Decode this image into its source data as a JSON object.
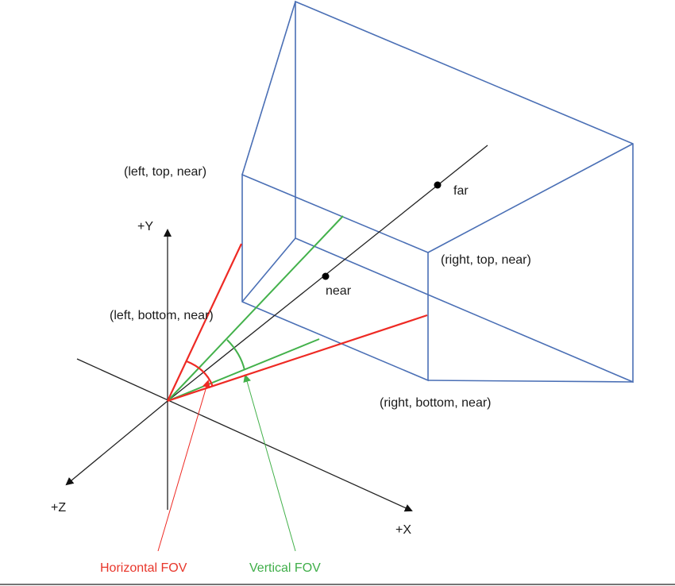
{
  "labels": {
    "left_top_near": "(left, top, near)",
    "right_top_near": "(right, top, near)",
    "left_bottom_near": "(left, bottom, near)",
    "right_bottom_near": "(right, bottom, near)",
    "far": "far",
    "near": "near",
    "axis_y": "+Y",
    "axis_z": "+Z",
    "axis_x": "+X",
    "horizontal_fov": "Horizontal FOV",
    "vertical_fov": "Vertical FOV"
  },
  "colors": {
    "frustum": "#4a6fb5",
    "axes": "#222222",
    "horizontal_fov": "#ee2a24",
    "vertical_fov": "#43b14b"
  }
}
